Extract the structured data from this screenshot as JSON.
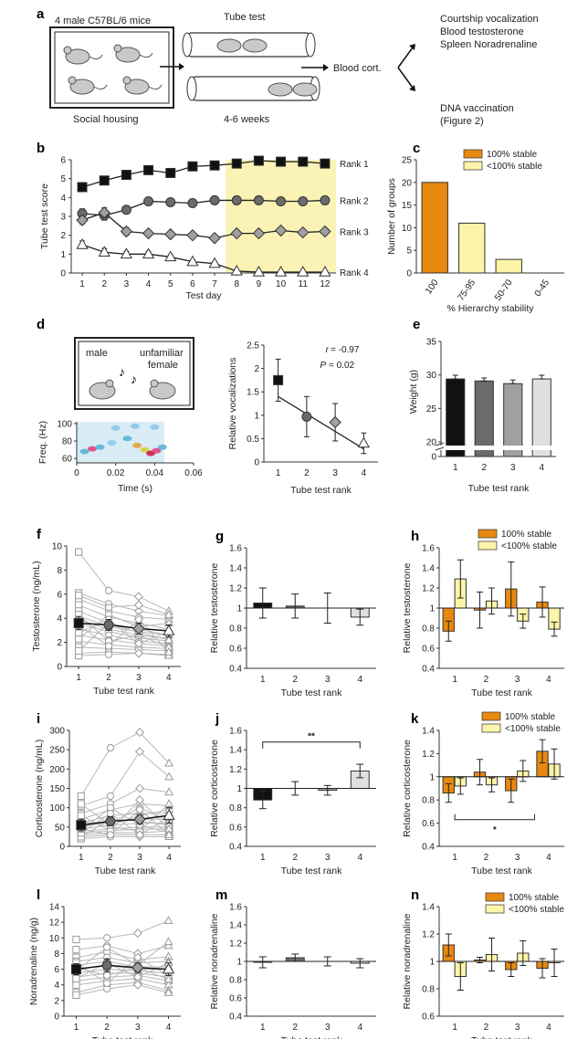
{
  "panel_a": {
    "label": "a",
    "housing_title": "4 male C57BL/6 mice",
    "housing_caption": "Social housing",
    "tube_title": "Tube test",
    "tube_caption": "4-6 weeks",
    "blood_label": "Blood cort.",
    "outcome_top": [
      "Courtship vocalization",
      "Blood testosterone",
      "Spleen Noradrenaline"
    ],
    "outcome_bottom": [
      "DNA vaccination",
      "(Figure 2)"
    ]
  },
  "chart_data": [
    {
      "id": "b",
      "label": "b",
      "type": "line",
      "xlabel": "Test day",
      "ylabel": "Tube test score",
      "x": [
        1,
        2,
        3,
        4,
        5,
        6,
        7,
        8,
        9,
        10,
        11,
        12
      ],
      "xlim": [
        0.5,
        12.5
      ],
      "ylim": [
        0,
        6
      ],
      "yticks": [
        0,
        1,
        2,
        3,
        4,
        5,
        6
      ],
      "highlight_x": [
        7.5,
        12.5
      ],
      "highlight_color": "#faf3b5",
      "series": [
        {
          "name": "Rank 1",
          "marker": "square",
          "fill": "#111111",
          "values": [
            4.55,
            4.9,
            5.2,
            5.45,
            5.3,
            5.65,
            5.7,
            5.8,
            5.95,
            5.9,
            5.9,
            5.8
          ],
          "err": [
            0.2,
            0.12,
            0.1,
            0.1,
            0.1,
            0.1,
            0.08,
            0.07,
            0.05,
            0.06,
            0.06,
            0.07
          ]
        },
        {
          "name": "Rank 2",
          "marker": "circle",
          "fill": "#6b6b6b",
          "values": [
            3.15,
            3.05,
            3.35,
            3.8,
            3.75,
            3.7,
            3.85,
            3.85,
            3.85,
            3.8,
            3.8,
            3.85
          ],
          "err": [
            0.25,
            0.25,
            0.2,
            0.15,
            0.15,
            0.1,
            0.1,
            0.1,
            0.1,
            0.1,
            0.1,
            0.1
          ]
        },
        {
          "name": "Rank 3",
          "marker": "diamond",
          "fill": "#a0a0a0",
          "values": [
            2.8,
            3.2,
            2.2,
            2.1,
            2.05,
            2.0,
            1.85,
            2.1,
            2.1,
            2.25,
            2.15,
            2.2
          ],
          "err": [
            0.2,
            0.25,
            0.2,
            0.15,
            0.15,
            0.1,
            0.1,
            0.08,
            0.07,
            0.08,
            0.07,
            0.07
          ]
        },
        {
          "name": "Rank 4",
          "marker": "triangle",
          "fill": "#ffffff",
          "values": [
            1.5,
            1.1,
            1.0,
            1.0,
            0.85,
            0.6,
            0.5,
            0.1,
            0.05,
            0.05,
            0.05,
            0.05
          ],
          "err": [
            0.2,
            0.2,
            0.15,
            0.15,
            0.12,
            0.1,
            0.1,
            0.06,
            0.04,
            0.04,
            0.04,
            0.04
          ]
        }
      ]
    },
    {
      "id": "c",
      "label": "c",
      "type": "bar",
      "xlabel": "% Hierarchy stability",
      "ylabel": "Number of groups",
      "categories": [
        "100",
        "75-95",
        "50-70",
        "0-45"
      ],
      "values": [
        20,
        11,
        3,
        0
      ],
      "bar_colors": [
        "#e8890f",
        "#fcf4a8",
        "#fcf4a8",
        "#fcf4a8"
      ],
      "ylim": [
        0,
        25
      ],
      "yticks": [
        0,
        5,
        10,
        15,
        20,
        25
      ],
      "legend": [
        {
          "name": "100% stable",
          "color": "#e8890f"
        },
        {
          "name": "<100% stable",
          "color": "#fcf4a8"
        }
      ]
    },
    {
      "id": "d_spec",
      "label": "d",
      "type": "heatmap",
      "xlabel": "Time (s)",
      "ylabel": "Freq. (Hz)",
      "xticks": [
        0,
        0.02,
        0.04,
        0.06
      ],
      "yticks": [
        60,
        80,
        100
      ],
      "xlim": [
        0,
        0.06
      ],
      "ylim": [
        55,
        102
      ],
      "inset_labels": [
        "male",
        "unfamiliar",
        "female"
      ]
    },
    {
      "id": "d",
      "type": "scatter",
      "xlabel": "Tube test rank",
      "ylabel": "Relative vocalizations",
      "x": [
        1,
        2,
        3,
        4
      ],
      "values": [
        1.75,
        0.97,
        0.85,
        0.4
      ],
      "err": [
        0.45,
        0.43,
        0.4,
        0.22
      ],
      "markers": [
        "square",
        "circle",
        "diamond",
        "triangle"
      ],
      "fills": [
        "#111111",
        "#6b6b6b",
        "#a0a0a0",
        "#ffffff"
      ],
      "trend": [
        [
          1,
          1.4
        ],
        [
          4,
          0.28
        ]
      ],
      "ylim": [
        0,
        2.5
      ],
      "yticks": [
        0,
        0.5,
        1.0,
        1.5,
        2.0,
        2.5
      ],
      "r_label": "r",
      "r_value": "= -0.97",
      "p_label": "P",
      "p_value": "= 0.02"
    },
    {
      "id": "e",
      "label": "e",
      "type": "bar",
      "xlabel": "Tube test rank",
      "ylabel": "Weight (g)",
      "categories": [
        "1",
        "2",
        "3",
        "4"
      ],
      "values": [
        29.4,
        29.1,
        28.7,
        29.4
      ],
      "err": [
        0.55,
        0.45,
        0.55,
        0.55
      ],
      "bar_colors": [
        "#111111",
        "#6b6b6b",
        "#a0a0a0",
        "#e0e0e0"
      ],
      "ylim": [
        20,
        35
      ],
      "yticks": [
        20,
        25,
        30,
        35
      ],
      "zero_label": "0"
    },
    {
      "id": "f",
      "label": "f",
      "type": "line",
      "xlabel": "Tube test rank",
      "ylabel": "Testosterone (ng/mL)",
      "x": [
        1,
        2,
        3,
        4
      ],
      "ylim": [
        0,
        10
      ],
      "yticks": [
        0,
        2,
        4,
        6,
        8,
        10
      ],
      "mean": [
        3.6,
        3.45,
        3.15,
        2.95
      ],
      "err": [
        0.55,
        0.45,
        0.45,
        0.5
      ],
      "individuals": [
        [
          9.5,
          6.3,
          5.8,
          4.6
        ],
        [
          6.1,
          5.2,
          4.6,
          4.2
        ],
        [
          5.6,
          4.6,
          4.1,
          3.9
        ],
        [
          5.1,
          4.1,
          3.6,
          3.1
        ],
        [
          4.6,
          3.6,
          3.1,
          2.6
        ],
        [
          4.2,
          3.3,
          2.9,
          2.6
        ],
        [
          3.9,
          3.1,
          2.6,
          2.3
        ],
        [
          3.6,
          2.9,
          2.4,
          2.1
        ],
        [
          3.1,
          2.6,
          2.1,
          1.9
        ],
        [
          2.6,
          2.2,
          1.9,
          1.7
        ],
        [
          2.1,
          1.8,
          1.6,
          1.5
        ],
        [
          1.6,
          1.5,
          1.4,
          1.3
        ],
        [
          1.1,
          1.2,
          1.1,
          1.0
        ],
        [
          0.9,
          1.0,
          1.1,
          0.9
        ],
        [
          5.9,
          4.9,
          5.1,
          4.3
        ],
        [
          2.3,
          4.3,
          3.3,
          3.6
        ],
        [
          4.3,
          2.1,
          2.6,
          1.6
        ],
        [
          1.3,
          3.6,
          2.8,
          2.2
        ],
        [
          3.4,
          1.7,
          3.9,
          1.2
        ],
        [
          2.8,
          3.9,
          1.9,
          2.9
        ]
      ]
    },
    {
      "id": "g",
      "label": "g",
      "type": "bar",
      "xlabel": "Tube test rank",
      "ylabel": "Relative testosterone",
      "categories": [
        "1",
        "2",
        "3",
        "4"
      ],
      "values": [
        1.05,
        1.02,
        1.0,
        0.91
      ],
      "err": [
        0.15,
        0.12,
        0.15,
        0.08
      ],
      "bar_colors": [
        "#111111",
        "#6b6b6b",
        "#a0a0a0",
        "#e0e0e0"
      ],
      "baseline": 1.0,
      "ylim": [
        0.4,
        1.6
      ],
      "yticks": [
        0.4,
        0.6,
        0.8,
        1.0,
        1.2,
        1.4,
        1.6
      ]
    },
    {
      "id": "h",
      "label": "h",
      "type": "bar",
      "xlabel": "Tube test rank",
      "ylabel": "Relative testosterone",
      "categories": [
        "1",
        "2",
        "3",
        "4"
      ],
      "series": [
        {
          "name": "100% stable",
          "color": "#e8890f",
          "values": [
            0.77,
            0.98,
            1.19,
            1.06
          ],
          "err": [
            0.1,
            0.18,
            0.27,
            0.15
          ]
        },
        {
          "name": "<100% stable",
          "color": "#fcf4a8",
          "values": [
            1.29,
            1.07,
            0.87,
            0.79
          ],
          "err": [
            0.19,
            0.13,
            0.07,
            0.07
          ]
        }
      ],
      "baseline": 1.0,
      "ylim": [
        0.4,
        1.6
      ],
      "yticks": [
        0.4,
        0.6,
        0.8,
        1.0,
        1.2,
        1.4,
        1.6
      ]
    },
    {
      "id": "i",
      "label": "i",
      "type": "line",
      "xlabel": "Tube test rank",
      "ylabel": "Corticosterone (ng/mL)",
      "x": [
        1,
        2,
        3,
        4
      ],
      "ylim": [
        0,
        300
      ],
      "yticks": [
        0,
        50,
        100,
        150,
        200,
        250,
        300
      ],
      "mean": [
        55,
        65,
        70,
        80
      ],
      "err": [
        15,
        12,
        12,
        20
      ],
      "individuals": [
        [
          130,
          255,
          295,
          215
        ],
        [
          105,
          130,
          245,
          180
        ],
        [
          85,
          110,
          150,
          140
        ],
        [
          70,
          95,
          110,
          105
        ],
        [
          60,
          80,
          85,
          85
        ],
        [
          50,
          65,
          70,
          70
        ],
        [
          45,
          55,
          60,
          60
        ],
        [
          40,
          45,
          50,
          50
        ],
        [
          35,
          40,
          45,
          45
        ],
        [
          30,
          35,
          35,
          40
        ],
        [
          25,
          30,
          30,
          30
        ],
        [
          20,
          25,
          25,
          25
        ],
        [
          55,
          60,
          100,
          65
        ],
        [
          65,
          50,
          40,
          110
        ],
        [
          40,
          100,
          55,
          35
        ],
        [
          25,
          70,
          65,
          55
        ],
        [
          80,
          40,
          120,
          45
        ],
        [
          35,
          85,
          30,
          75
        ],
        [
          110,
          55,
          80,
          95
        ],
        [
          45,
          30,
          95,
          30
        ]
      ]
    },
    {
      "id": "j",
      "label": "j",
      "type": "bar",
      "xlabel": "Tube test rank",
      "ylabel": "Relative corticosterone",
      "categories": [
        "1",
        "2",
        "3",
        "4"
      ],
      "values": [
        0.88,
        1.0,
        0.98,
        1.18
      ],
      "err": [
        0.09,
        0.07,
        0.05,
        0.07
      ],
      "bar_colors": [
        "#111111",
        "#6b6b6b",
        "#a0a0a0",
        "#e0e0e0"
      ],
      "baseline": 1.0,
      "ylim": [
        0.4,
        1.6
      ],
      "yticks": [
        0.4,
        0.6,
        0.8,
        1.0,
        1.2,
        1.4,
        1.6
      ],
      "significance": {
        "from": 1,
        "to": 4,
        "y": 1.48,
        "label": "**"
      }
    },
    {
      "id": "k",
      "label": "k",
      "type": "bar",
      "xlabel": "Tube test rank",
      "ylabel": "Relative corticosterone",
      "categories": [
        "1",
        "2",
        "3",
        "4"
      ],
      "series": [
        {
          "name": "100% stable",
          "color": "#e8890f",
          "values": [
            0.86,
            1.04,
            0.88,
            1.22
          ],
          "err": [
            0.08,
            0.11,
            0.1,
            0.1
          ]
        },
        {
          "name": "<100% stable",
          "color": "#fcf4a8",
          "values": [
            0.92,
            0.93,
            1.05,
            1.11
          ],
          "err": [
            0.07,
            0.06,
            0.09,
            0.13
          ]
        }
      ],
      "baseline": 1.0,
      "ylim": [
        0.4,
        1.4
      ],
      "yticks": [
        0.4,
        0.6,
        0.8,
        1.0,
        1.2,
        1.4
      ],
      "significance": {
        "from": 1,
        "to": 3.55,
        "y": 0.63,
        "label": "*",
        "inverted": true
      }
    },
    {
      "id": "l",
      "label": "l",
      "type": "line",
      "xlabel": "Tube test rank",
      "ylabel": "Noradrenaline (ng/g)",
      "x": [
        1,
        2,
        3,
        4
      ],
      "ylim": [
        0,
        14
      ],
      "yticks": [
        0,
        2,
        4,
        6,
        8,
        10,
        12,
        14
      ],
      "mean": [
        6.0,
        6.5,
        6.2,
        6.0
      ],
      "err": [
        0.7,
        0.8,
        0.6,
        0.8
      ],
      "individuals": [
        [
          9.8,
          10.0,
          10.6,
          12.2
        ],
        [
          8.5,
          9.0,
          8.0,
          9.0
        ],
        [
          7.5,
          8.2,
          7.2,
          7.6
        ],
        [
          7.0,
          7.5,
          6.8,
          7.0
        ],
        [
          6.5,
          7.0,
          6.3,
          6.3
        ],
        [
          6.0,
          6.5,
          6.0,
          6.0
        ],
        [
          5.5,
          6.0,
          5.8,
          5.5
        ],
        [
          5.0,
          5.5,
          5.5,
          5.0
        ],
        [
          4.5,
          5.0,
          5.2,
          4.5
        ],
        [
          4.0,
          4.5,
          4.8,
          4.0
        ],
        [
          3.0,
          4.0,
          4.3,
          3.3
        ],
        [
          2.7,
          3.5,
          4.0,
          3.0
        ],
        [
          5.8,
          8.8,
          6.5,
          9.5
        ],
        [
          6.8,
          4.2,
          7.5,
          5.2
        ],
        [
          4.8,
          6.8,
          5.0,
          6.8
        ],
        [
          6.2,
          5.2,
          6.2,
          4.7
        ]
      ]
    },
    {
      "id": "m",
      "label": "m",
      "type": "bar",
      "xlabel": "Tube test rank",
      "ylabel": "Relative noradrenaline",
      "categories": [
        "1",
        "2",
        "3",
        "4"
      ],
      "values": [
        0.99,
        1.04,
        1.0,
        0.98
      ],
      "err": [
        0.06,
        0.04,
        0.05,
        0.05
      ],
      "bar_colors": [
        "#111111",
        "#6b6b6b",
        "#a0a0a0",
        "#e0e0e0"
      ],
      "baseline": 1.0,
      "ylim": [
        0.4,
        1.6
      ],
      "yticks": [
        0.4,
        0.6,
        0.8,
        1,
        1.2,
        1.4,
        1.6
      ]
    },
    {
      "id": "n",
      "label": "n",
      "type": "bar",
      "xlabel": "Tube test rank",
      "ylabel": "Relative noradrenaline",
      "categories": [
        "1",
        "2",
        "3",
        "4"
      ],
      "series": [
        {
          "name": "100% stable",
          "color": "#e8890f",
          "values": [
            1.12,
            1.01,
            0.94,
            0.95
          ],
          "err": [
            0.08,
            0.02,
            0.05,
            0.07
          ]
        },
        {
          "name": "<100% stable",
          "color": "#fcf4a8",
          "values": [
            0.89,
            1.05,
            1.06,
            0.99
          ],
          "err": [
            0.1,
            0.12,
            0.09,
            0.1
          ]
        }
      ],
      "baseline": 1.0,
      "ylim": [
        0.6,
        1.4
      ],
      "yticks": [
        0.6,
        0.8,
        1.0,
        1.2,
        1.4
      ]
    }
  ]
}
